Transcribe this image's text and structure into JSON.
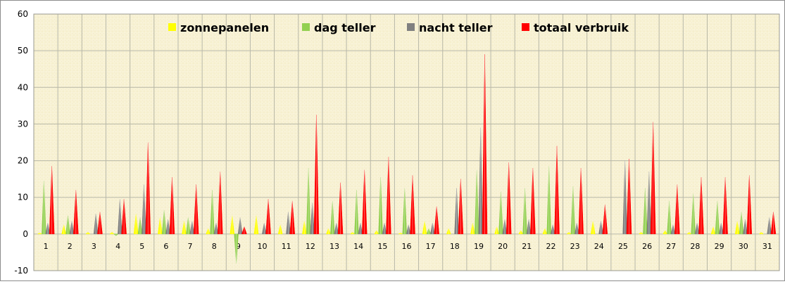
{
  "chart_data": {
    "type": "bar",
    "title": "",
    "xlabel": "",
    "ylabel": "",
    "ylim": [
      -10,
      60
    ],
    "yticks": [
      -10,
      0,
      10,
      20,
      30,
      40,
      50,
      60
    ],
    "grid": true,
    "legend_position": "top",
    "categories": [
      "1",
      "2",
      "3",
      "4",
      "5",
      "6",
      "7",
      "8",
      "9",
      "10",
      "11",
      "12",
      "13",
      "14",
      "15",
      "16",
      "17",
      "18",
      "19",
      "20",
      "21",
      "22",
      "23",
      "24",
      "25",
      "26",
      "27",
      "28",
      "29",
      "30",
      "31"
    ],
    "series": [
      {
        "name": "zonnepanelen",
        "color": "#ffff00",
        "values": [
          0.3,
          2.5,
          0.5,
          0.5,
          5.5,
          4.5,
          3.5,
          1.5,
          5.0,
          5.0,
          2.5,
          3.5,
          1.5,
          0.5,
          1.0,
          0.3,
          3.5,
          1.5,
          3.0,
          2.0,
          1.0,
          1.5,
          0.5,
          3.5,
          0.0,
          0.5,
          1.0,
          0.5,
          2.0,
          3.5,
          0.5
        ]
      },
      {
        "name": "dag teller",
        "color": "#92d050",
        "values": [
          14.5,
          5.0,
          0.0,
          -0.5,
          4.5,
          6.5,
          4.5,
          12.0,
          -8.0,
          0.0,
          0.0,
          18.0,
          9.0,
          12.0,
          15.5,
          12.5,
          1.5,
          0.0,
          17.5,
          11.5,
          12.5,
          18.5,
          13.0,
          0.0,
          0.0,
          12.5,
          9.0,
          11.0,
          9.0,
          6.0,
          0.0
        ]
      },
      {
        "name": "nacht teller",
        "color": "#808080",
        "values": [
          3.0,
          3.5,
          5.5,
          9.5,
          13.5,
          4.0,
          3.5,
          3.0,
          4.5,
          3.0,
          6.0,
          8.5,
          3.0,
          3.0,
          3.0,
          2.5,
          3.0,
          12.5,
          29.0,
          4.0,
          4.0,
          2.5,
          3.0,
          3.5,
          20.0,
          17.0,
          2.5,
          3.0,
          3.0,
          4.0,
          4.5
        ]
      },
      {
        "name": "totaal verbruik",
        "color": "#ff0000",
        "values": [
          18.5,
          12.0,
          6.0,
          9.5,
          25.0,
          15.5,
          13.5,
          17.0,
          2.0,
          9.5,
          9.0,
          32.5,
          14.0,
          17.5,
          21.0,
          16.0,
          7.5,
          15.0,
          49.0,
          19.5,
          18.0,
          24.0,
          18.0,
          8.0,
          20.5,
          30.5,
          13.5,
          15.5,
          15.5,
          16.0,
          6.0
        ]
      }
    ]
  }
}
